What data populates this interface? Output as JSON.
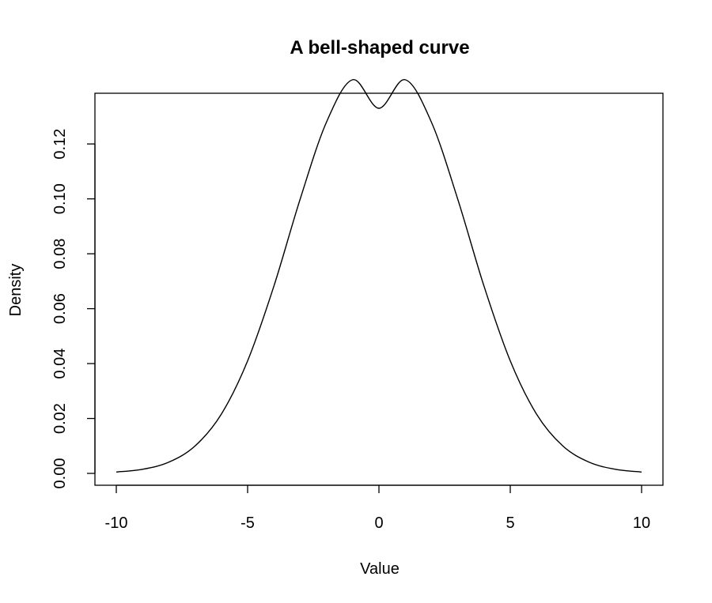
{
  "chart_data": {
    "type": "line",
    "title": "A bell-shaped curve",
    "xlabel": "Value",
    "ylabel": "Density",
    "xlim": [
      -10,
      10
    ],
    "ylim": [
      0,
      0.133
    ],
    "x_ticks": [
      -10,
      -5,
      0,
      5,
      10
    ],
    "x_tick_labels": [
      "-10",
      "-5",
      "0",
      "5",
      "10"
    ],
    "y_ticks": [
      0,
      0.02,
      0.04,
      0.06,
      0.08,
      0.1,
      0.12
    ],
    "y_tick_labels": [
      "0.00",
      "0.02",
      "0.04",
      "0.06",
      "0.08",
      "0.10",
      "0.12"
    ],
    "grid": false,
    "legend": "none",
    "line_color": "#000000",
    "series": [
      {
        "x": [
          -10,
          -9,
          -8,
          -7,
          -6,
          -5,
          -4,
          -3,
          -2,
          -1,
          0,
          1,
          2,
          3,
          4,
          5,
          6,
          7,
          8,
          9,
          10
        ],
        "values": [
          0.0005,
          0.0015,
          0.0041,
          0.01,
          0.0216,
          0.041,
          0.0682,
          0.0999,
          0.1279,
          0.1434,
          0.133,
          0.1434,
          0.1279,
          0.0999,
          0.0682,
          0.041,
          0.0216,
          0.01,
          0.0041,
          0.0015,
          0.0005
        ]
      }
    ]
  }
}
